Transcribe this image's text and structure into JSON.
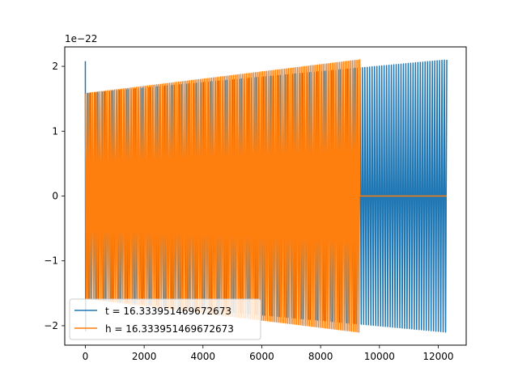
{
  "chart_data": {
    "type": "line",
    "title": "",
    "xlabel": "",
    "ylabel": "",
    "y_offset_label": "1e−22",
    "xlim": [
      -700,
      12950
    ],
    "ylim": [
      -2.3,
      2.3
    ],
    "x_ticks": [
      0,
      2000,
      4000,
      6000,
      8000,
      10000,
      12000
    ],
    "y_ticks": [
      -2,
      -1,
      0,
      1,
      2
    ],
    "grid": false,
    "legend_position": "lower-left",
    "series": [
      {
        "name": "t = 16.333951469672673",
        "color": "#1f77b4",
        "x_start": 0,
        "x_end": 12290,
        "amplitude_start": 1.58,
        "amplitude_end": 2.1,
        "initial_spike": 2.08,
        "oscillation_cycles": 150
      },
      {
        "name": "h = 16.333951469672673",
        "color": "#ff7f0e",
        "x_start": 0,
        "x_end": 9330,
        "amplitude_start": 1.58,
        "amplitude_end": 2.1,
        "flat_value_after_end": 0,
        "flat_until": 12290,
        "oscillation_cycles": 150
      }
    ]
  }
}
